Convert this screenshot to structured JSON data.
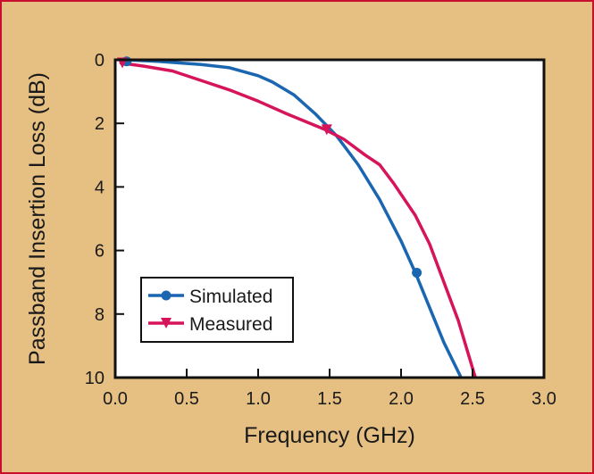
{
  "chart_data": {
    "type": "line",
    "xlabel": "Frequency (GHz)",
    "ylabel": "Passband Insertion Loss (dB)",
    "xlim": [
      0.0,
      3.0
    ],
    "ylim": [
      0,
      10
    ],
    "y_inverted": true,
    "grid": false,
    "legend_position": "bottom-left",
    "x_ticks": [
      "0.0",
      "0.5",
      "1.0",
      "1.5",
      "2.0",
      "2.5",
      "3.0"
    ],
    "y_ticks": [
      "0",
      "2",
      "4",
      "6",
      "8",
      "10"
    ],
    "series": [
      {
        "name": "Simulated",
        "color": "#1a66b0",
        "marker": "circle",
        "x": [
          0.07,
          0.3,
          0.6,
          0.8,
          1.0,
          1.1,
          1.25,
          1.4,
          1.55,
          1.7,
          1.85,
          2.0,
          2.1,
          2.2,
          2.3,
          2.42
        ],
        "y": [
          0.0,
          0.05,
          0.15,
          0.25,
          0.5,
          0.7,
          1.1,
          1.7,
          2.4,
          3.3,
          4.4,
          5.7,
          6.7,
          7.8,
          8.9,
          10.0
        ],
        "marker_x": [
          0.08,
          2.11
        ],
        "marker_y": [
          0.05,
          6.7
        ]
      },
      {
        "name": "Measured",
        "color": "#d6145a",
        "marker": "triangle-down",
        "x": [
          0.04,
          0.2,
          0.4,
          0.6,
          0.8,
          1.0,
          1.2,
          1.47,
          1.6,
          1.75,
          1.85,
          1.95,
          2.1,
          2.2,
          2.3,
          2.4,
          2.52
        ],
        "y": [
          0.1,
          0.2,
          0.35,
          0.65,
          0.95,
          1.3,
          1.7,
          2.2,
          2.5,
          3.0,
          3.3,
          3.9,
          4.9,
          5.8,
          7.0,
          8.2,
          10.0
        ],
        "marker_x": [
          0.05,
          1.48
        ],
        "marker_y": [
          0.1,
          2.2
        ]
      }
    ]
  }
}
